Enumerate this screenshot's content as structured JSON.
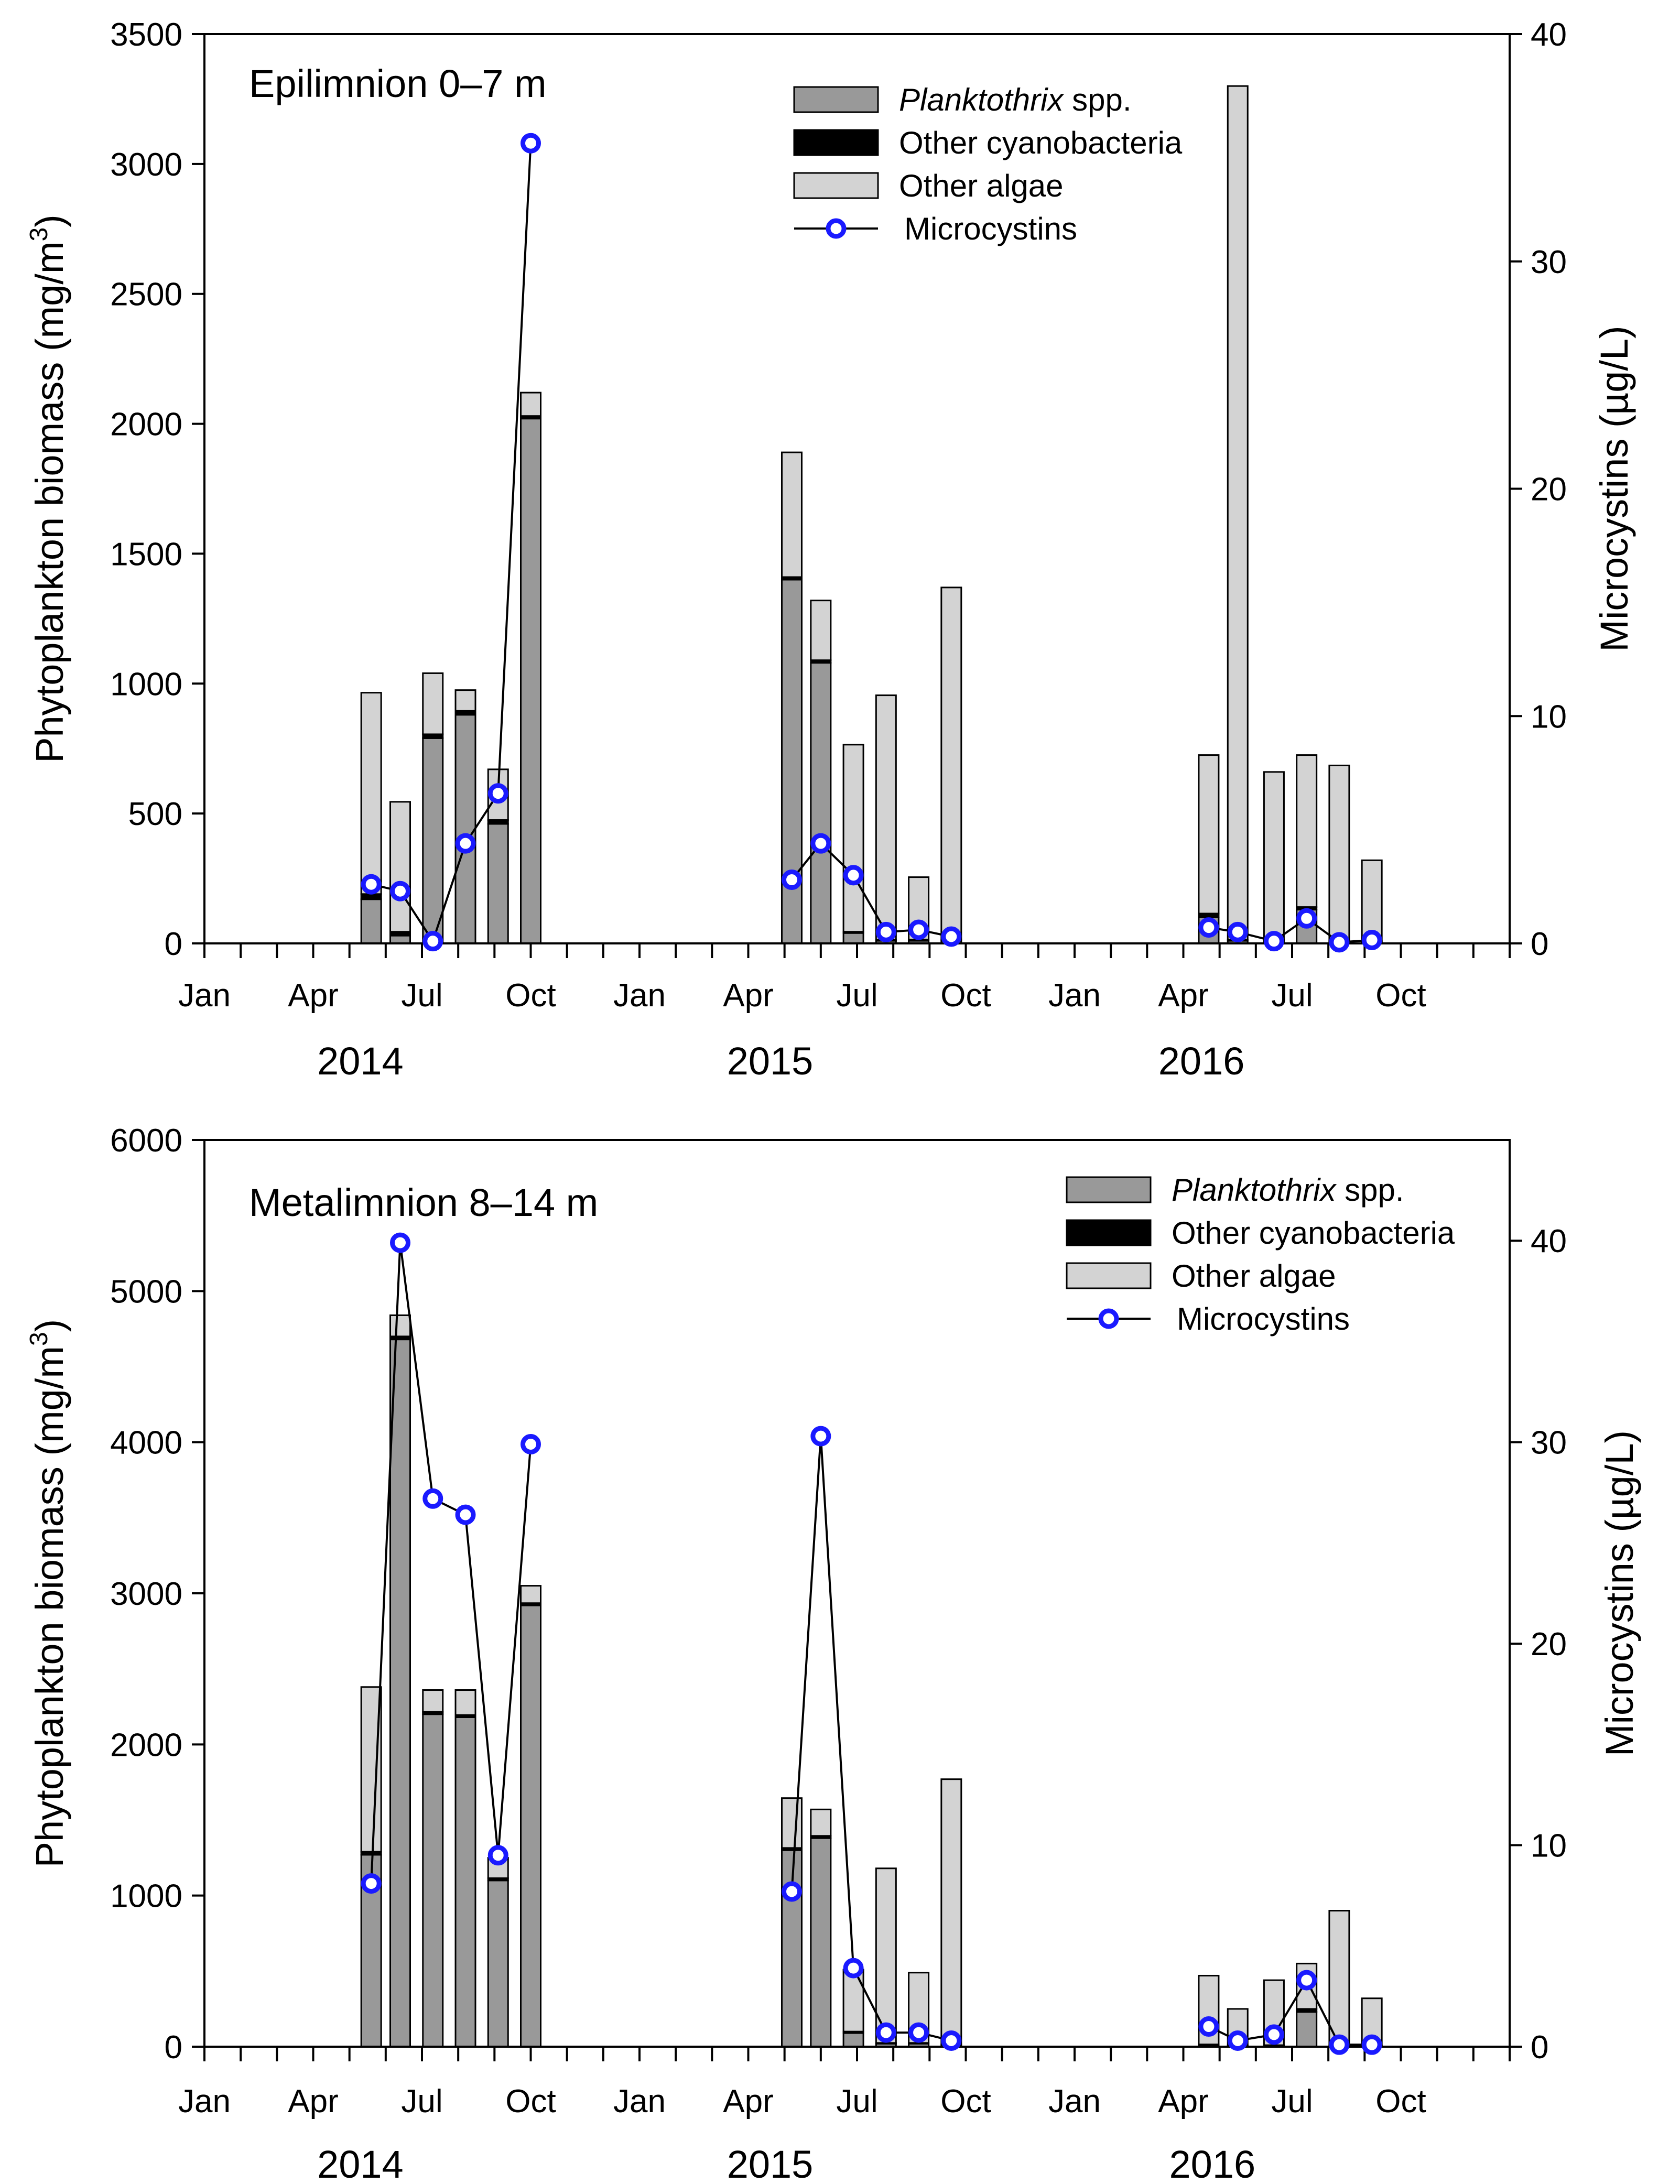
{
  "legend": {
    "planktothrix_italic": "Planktothrix",
    "planktothrix_suffix": " spp.",
    "other_cyano": "Other cyanobacteria",
    "other_algae": "Other algae",
    "microcystins": "Microcystins"
  },
  "colors": {
    "planktothrix": "#999999",
    "other_cyano": "#000000",
    "other_algae": "#d3d3d3",
    "microcystins_marker": "#1a1aff",
    "line": "#000000"
  },
  "chart_data": [
    {
      "type": "bar",
      "title": "Epilimnion 0–7 m",
      "xlabel": "",
      "ylabel": "Phytoplankton biomass (mg/m3)",
      "ylabel_parts": {
        "main": "Phytoplankton biomass (mg/m",
        "sup": "3",
        "close": ")"
      },
      "y2label": "Microcystins (µg/L)",
      "ylim": [
        0,
        3500
      ],
      "y2lim": [
        0,
        40
      ],
      "yticks": [
        0,
        500,
        1000,
        1500,
        2000,
        2500,
        3000,
        3500
      ],
      "y2ticks": [
        0,
        10,
        20,
        30,
        40
      ],
      "x_month_range": [
        0,
        36
      ],
      "x_ticks": [
        {
          "month": 0,
          "label": "Jan"
        },
        {
          "month": 3,
          "label": "Apr"
        },
        {
          "month": 6,
          "label": "Jul"
        },
        {
          "month": 9,
          "label": "Oct"
        },
        {
          "month": 12,
          "label": "Jan"
        },
        {
          "month": 15,
          "label": "Apr"
        },
        {
          "month": 18,
          "label": "Jul"
        },
        {
          "month": 21,
          "label": "Oct"
        },
        {
          "month": 24,
          "label": "Jan"
        },
        {
          "month": 27,
          "label": "Apr"
        },
        {
          "month": 30,
          "label": "Jul"
        },
        {
          "month": 33,
          "label": "Oct"
        }
      ],
      "years": [
        {
          "label": "2014",
          "month": 4.3
        },
        {
          "label": "2015",
          "month": 15.6
        },
        {
          "label": "2016",
          "month": 27.5
        }
      ],
      "bars": [
        {
          "month": 4.6,
          "planktothrix": 170,
          "other_cyano": 20,
          "other_algae": 775
        },
        {
          "month": 5.4,
          "planktothrix": 30,
          "other_cyano": 15,
          "other_algae": 500
        },
        {
          "month": 6.3,
          "planktothrix": 790,
          "other_cyano": 15,
          "other_algae": 235
        },
        {
          "month": 7.2,
          "planktothrix": 880,
          "other_cyano": 15,
          "other_algae": 80
        },
        {
          "month": 8.1,
          "planktothrix": 460,
          "other_cyano": 15,
          "other_algae": 195
        },
        {
          "month": 9.0,
          "planktothrix": 2020,
          "other_cyano": 10,
          "other_algae": 90
        },
        {
          "month": 16.2,
          "planktothrix": 1400,
          "other_cyano": 10,
          "other_algae": 480
        },
        {
          "month": 17.0,
          "planktothrix": 1080,
          "other_cyano": 10,
          "other_algae": 230
        },
        {
          "month": 17.9,
          "planktothrix": 40,
          "other_cyano": 5,
          "other_algae": 720
        },
        {
          "month": 18.8,
          "planktothrix": 10,
          "other_cyano": 5,
          "other_algae": 940
        },
        {
          "month": 19.7,
          "planktothrix": 10,
          "other_cyano": 5,
          "other_algae": 240
        },
        {
          "month": 20.6,
          "planktothrix": 10,
          "other_cyano": 5,
          "other_algae": 1355
        },
        {
          "month": 27.7,
          "planktothrix": 100,
          "other_cyano": 15,
          "other_algae": 610
        },
        {
          "month": 28.5,
          "planktothrix": 10,
          "other_cyano": 5,
          "other_algae": 3285
        },
        {
          "month": 29.5,
          "planktothrix": 10,
          "other_cyano": 5,
          "other_algae": 645
        },
        {
          "month": 30.4,
          "planktothrix": 130,
          "other_cyano": 10,
          "other_algae": 585
        },
        {
          "month": 31.3,
          "planktothrix": 5,
          "other_cyano": 5,
          "other_algae": 675
        },
        {
          "month": 32.2,
          "planktothrix": 5,
          "other_cyano": 5,
          "other_algae": 310
        }
      ],
      "microcystin_series": [
        [
          {
            "month": 4.6,
            "value": 2.6
          },
          {
            "month": 5.4,
            "value": 2.3
          },
          {
            "month": 6.3,
            "value": 0.1
          },
          {
            "month": 7.2,
            "value": 4.4
          },
          {
            "month": 8.1,
            "value": 6.6
          },
          {
            "month": 9.0,
            "value": 35.2
          }
        ],
        [
          {
            "month": 16.2,
            "value": 2.8
          },
          {
            "month": 17.0,
            "value": 4.4
          },
          {
            "month": 17.9,
            "value": 3.0
          },
          {
            "month": 18.8,
            "value": 0.5
          },
          {
            "month": 19.7,
            "value": 0.6
          },
          {
            "month": 20.6,
            "value": 0.3
          }
        ],
        [
          {
            "month": 27.7,
            "value": 0.7
          },
          {
            "month": 28.5,
            "value": 0.5
          },
          {
            "month": 29.5,
            "value": 0.1
          },
          {
            "month": 30.4,
            "value": 1.1
          },
          {
            "month": 31.3,
            "value": 0.05
          },
          {
            "month": 32.2,
            "value": 0.15
          }
        ]
      ]
    },
    {
      "type": "bar",
      "title": "Metalimnion 8–14 m",
      "xlabel": "",
      "ylabel": "Phytoplankton biomass (mg/m3)",
      "ylabel_parts": {
        "main": "Phytoplankton biomass (mg/m",
        "sup": "3",
        "close": ")"
      },
      "y2label": "Microcystins (µg/L)",
      "ylim": [
        0,
        6000
      ],
      "y2lim": [
        0,
        45
      ],
      "yticks": [
        0,
        1000,
        2000,
        3000,
        4000,
        5000,
        6000
      ],
      "y2ticks": [
        0,
        10,
        20,
        30,
        40
      ],
      "x_month_range": [
        0,
        36
      ],
      "x_ticks": [
        {
          "month": 0,
          "label": "Jan"
        },
        {
          "month": 3,
          "label": "Apr"
        },
        {
          "month": 6,
          "label": "Jul"
        },
        {
          "month": 9,
          "label": "Oct"
        },
        {
          "month": 12,
          "label": "Jan"
        },
        {
          "month": 15,
          "label": "Apr"
        },
        {
          "month": 18,
          "label": "Jul"
        },
        {
          "month": 21,
          "label": "Oct"
        },
        {
          "month": 24,
          "label": "Jan"
        },
        {
          "month": 27,
          "label": "Apr"
        },
        {
          "month": 30,
          "label": "Jul"
        },
        {
          "month": 33,
          "label": "Oct"
        }
      ],
      "years": [
        {
          "label": "2014",
          "month": 4.3
        },
        {
          "label": "2015",
          "month": 15.6
        },
        {
          "label": "2016",
          "month": 27.8
        }
      ],
      "bars": [
        {
          "month": 4.6,
          "planktothrix": 1270,
          "other_cyano": 20,
          "other_algae": 1090
        },
        {
          "month": 5.4,
          "planktothrix": 4680,
          "other_cyano": 20,
          "other_algae": 140
        },
        {
          "month": 6.3,
          "planktothrix": 2200,
          "other_cyano": 15,
          "other_algae": 145
        },
        {
          "month": 7.2,
          "planktothrix": 2180,
          "other_cyano": 15,
          "other_algae": 165
        },
        {
          "month": 8.1,
          "planktothrix": 1100,
          "other_cyano": 15,
          "other_algae": 135
        },
        {
          "month": 9.0,
          "planktothrix": 2920,
          "other_cyano": 15,
          "other_algae": 115
        },
        {
          "month": 16.2,
          "planktothrix": 1300,
          "other_cyano": 15,
          "other_algae": 330
        },
        {
          "month": 17.0,
          "planktothrix": 1380,
          "other_cyano": 15,
          "other_algae": 175
        },
        {
          "month": 17.9,
          "planktothrix": 90,
          "other_cyano": 10,
          "other_algae": 410
        },
        {
          "month": 18.8,
          "planktothrix": 20,
          "other_cyano": 5,
          "other_algae": 1155
        },
        {
          "month": 19.7,
          "planktothrix": 20,
          "other_cyano": 5,
          "other_algae": 465
        },
        {
          "month": 20.6,
          "planktothrix": 10,
          "other_cyano": 5,
          "other_algae": 1755
        },
        {
          "month": 27.7,
          "planktothrix": 10,
          "other_cyano": 5,
          "other_algae": 455
        },
        {
          "month": 28.5,
          "planktothrix": 5,
          "other_cyano": 5,
          "other_algae": 240
        },
        {
          "month": 29.5,
          "planktothrix": 5,
          "other_cyano": 5,
          "other_algae": 430
        },
        {
          "month": 30.4,
          "planktothrix": 230,
          "other_cyano": 20,
          "other_algae": 300
        },
        {
          "month": 31.3,
          "planktothrix": 5,
          "other_cyano": 5,
          "other_algae": 890
        },
        {
          "month": 32.2,
          "planktothrix": 5,
          "other_cyano": 5,
          "other_algae": 310
        }
      ],
      "microcystin_series": [
        [
          {
            "month": 4.6,
            "value": 8.1
          },
          {
            "month": 5.4,
            "value": 39.9
          },
          {
            "month": 6.3,
            "value": 27.2
          },
          {
            "month": 7.2,
            "value": 26.4
          },
          {
            "month": 8.1,
            "value": 9.5
          },
          {
            "month": 9.0,
            "value": 29.9
          }
        ],
        [
          {
            "month": 16.2,
            "value": 7.7
          },
          {
            "month": 17.0,
            "value": 30.3
          },
          {
            "month": 17.9,
            "value": 3.9
          },
          {
            "month": 18.8,
            "value": 0.7
          },
          {
            "month": 19.7,
            "value": 0.7
          },
          {
            "month": 20.6,
            "value": 0.3
          }
        ],
        [
          {
            "month": 27.7,
            "value": 1.0
          },
          {
            "month": 28.5,
            "value": 0.3
          },
          {
            "month": 29.5,
            "value": 0.6
          },
          {
            "month": 30.4,
            "value": 3.3
          },
          {
            "month": 31.3,
            "value": 0.1
          },
          {
            "month": 32.2,
            "value": 0.1
          }
        ]
      ]
    }
  ]
}
